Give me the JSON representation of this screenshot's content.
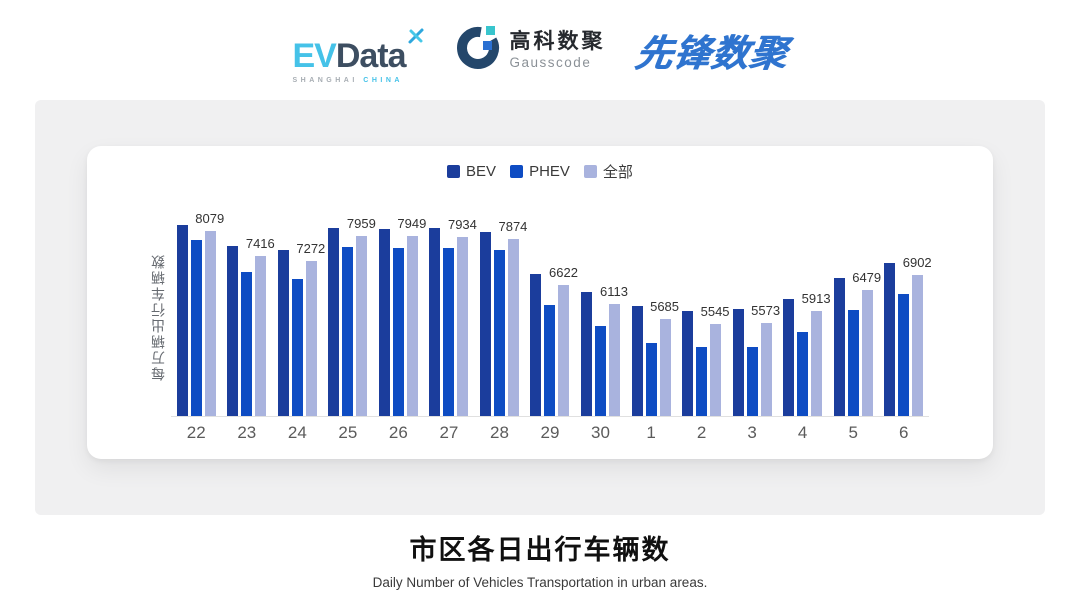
{
  "header": {
    "evdata": {
      "ev": "EV",
      "data": "Data",
      "sub_left": "SHANGHAI",
      "sub_right": "CHINA"
    },
    "gausscode": {
      "cn": "高科数聚",
      "en": "Gausscode"
    },
    "xianfeng": {
      "text": "先锋数聚"
    }
  },
  "chart_data": {
    "type": "bar",
    "title": "市区各日出行车辆数",
    "subtitle": "Daily Number of Vehicles Transportation in urban areas.",
    "ylabel": "每万辆出行车辆数",
    "xlabel": "",
    "categories": [
      "22",
      "23",
      "24",
      "25",
      "26",
      "27",
      "28",
      "29",
      "30",
      "1",
      "2",
      "3",
      "4",
      "5",
      "6"
    ],
    "series": [
      {
        "name": "BEV",
        "color": "#1b3d9c",
        "values": [
          8250,
          7680,
          7570,
          8170,
          8140,
          8160,
          8060,
          6920,
          6430,
          6050,
          5910,
          5960,
          6250,
          6800,
          7210
        ]
      },
      {
        "name": "PHEV",
        "color": "#0e4cc3",
        "values": [
          7850,
          6980,
          6780,
          7650,
          7630,
          7630,
          7570,
          6080,
          5500,
          5040,
          4930,
          4940,
          5340,
          5940,
          6380
        ]
      },
      {
        "name": "全部",
        "color": "#a9b3de",
        "values": [
          8079,
          7416,
          7272,
          7959,
          7949,
          7934,
          7874,
          6622,
          6113,
          5685,
          5545,
          5573,
          5913,
          6479,
          6902
        ]
      }
    ],
    "data_labels": [
      8079,
      7416,
      7272,
      7959,
      7949,
      7934,
      7874,
      6622,
      6113,
      5685,
      5545,
      5573,
      5913,
      6479,
      6902
    ],
    "data_label_series": 2,
    "legend_position": "top",
    "grid": false,
    "ylim": [
      3050,
      8500
    ]
  }
}
